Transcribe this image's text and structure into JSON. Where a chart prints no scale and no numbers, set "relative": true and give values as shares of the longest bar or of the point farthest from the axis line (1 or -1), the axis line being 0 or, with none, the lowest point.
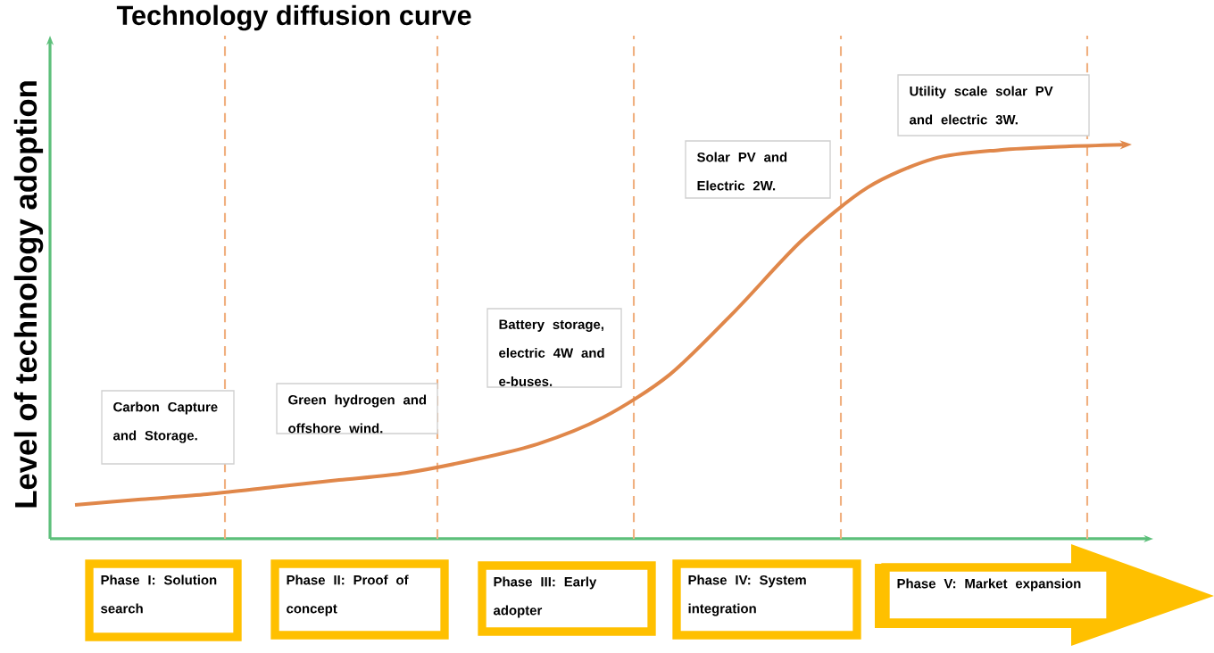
{
  "chart_data": {
    "type": "line",
    "title": "Technology diffusion curve",
    "ylabel": "Level of technology adoption",
    "relative": true,
    "marker": "none",
    "line_style": "solid",
    "categories": [
      null,
      null,
      null,
      null,
      null,
      null,
      null,
      null,
      null,
      null,
      null,
      null,
      null,
      null,
      null,
      null,
      null
    ],
    "series": [
      {
        "color": "#e0874a",
        "values": [
          0.086,
          0.1,
          0.113,
          0.131,
          0.149,
          0.167,
          0.199,
          0.24,
          0.308,
          0.416,
          0.579,
          0.756,
          0.891,
          0.964,
          0.986,
          0.995,
          1
        ]
      }
    ],
    "annotations": [
      "Carbon Capture and Storage.",
      "Green hydrogen and offshore wind.",
      "Battery storage, electric 4W and e-buses.",
      "Solar PV and Electric 2W.",
      "Utility scale solar PV and electric 3W.",
      "Phase I: Solution search",
      "Phase II: Proof of concept",
      "Phase III: Early adopter",
      "Phase IV: System integration",
      "Phase V: Market expansion"
    ]
  }
}
